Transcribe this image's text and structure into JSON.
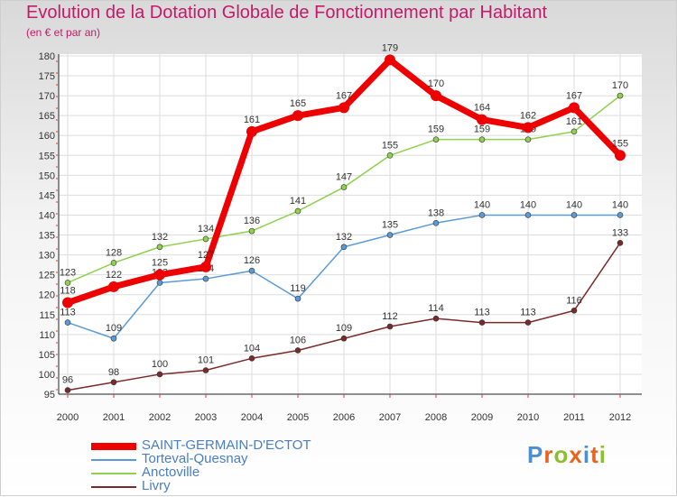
{
  "title": "Evolution de la Dotation Globale de Fonctionnement par Habitant",
  "subtitle": "(en € et par an)",
  "brand": {
    "text": "Proxiti",
    "letter_colors": [
      "#4b8fd1",
      "#e8641e",
      "#8bbf2c",
      "#e8641e",
      "#4b8fd1",
      "#e8641e",
      "#8bbf2c"
    ]
  },
  "chart_data": {
    "type": "line",
    "x": [
      "2000",
      "2001",
      "2002",
      "2003",
      "2004",
      "2005",
      "2006",
      "2007",
      "2008",
      "2009",
      "2010",
      "2011",
      "2012"
    ],
    "ylim": [
      95,
      180
    ],
    "yticks": [
      95,
      100,
      105,
      110,
      115,
      120,
      125,
      130,
      135,
      140,
      145,
      150,
      155,
      160,
      165,
      170,
      175,
      180
    ],
    "grid": true,
    "legend_position": "bottom-left",
    "series": [
      {
        "name": "Livry",
        "color": "#7a2a2a",
        "values": [
          96,
          98,
          100,
          101,
          104,
          106,
          109,
          112,
          114,
          113,
          113,
          116,
          133
        ]
      },
      {
        "name": "Torteval-Quesnay",
        "color": "#5b9bd5",
        "values": [
          113,
          109,
          123,
          124,
          126,
          119,
          132,
          135,
          138,
          140,
          140,
          140,
          140
        ]
      },
      {
        "name": "Anctoville",
        "color": "#8fd14f",
        "values": [
          123,
          128,
          132,
          134,
          136,
          141,
          147,
          155,
          159,
          159,
          159,
          161,
          170
        ]
      },
      {
        "name": "SAINT-GERMAIN-D'ECTOT",
        "color": "#ee0000",
        "values": [
          118,
          122,
          125,
          127,
          161,
          165,
          167,
          179,
          170,
          164,
          162,
          167,
          155
        ]
      }
    ],
    "legend_order": [
      "SAINT-GERMAIN-D'ECTOT",
      "Torteval-Quesnay",
      "Anctoville",
      "Livry"
    ]
  }
}
